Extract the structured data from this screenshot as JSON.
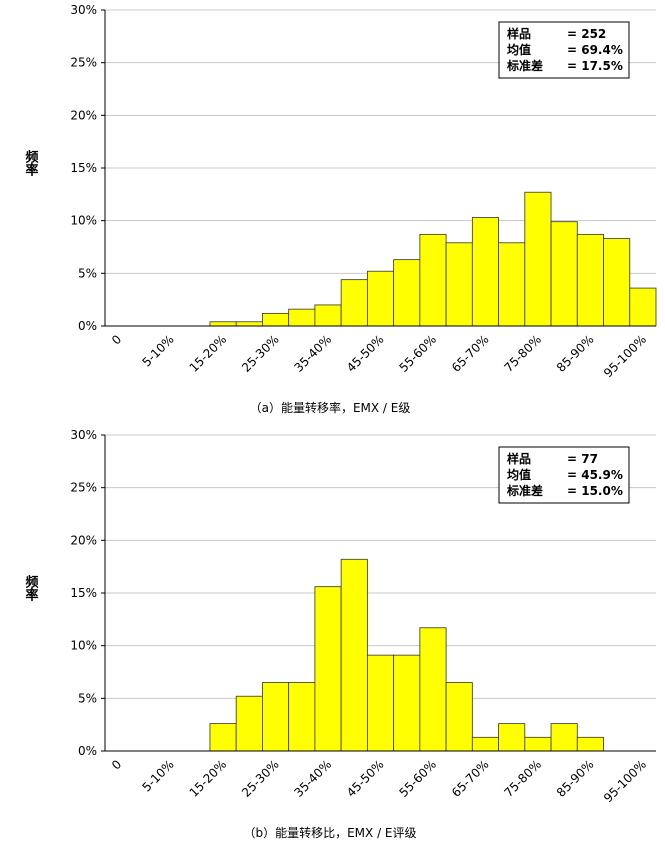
{
  "chart_data": [
    {
      "type": "bar",
      "ylabel": "频率",
      "caption": "（a）能量转移率，EMX / E级",
      "color": "#ffff00",
      "categories": [
        "0",
        null,
        "5-10%",
        null,
        "15-20%",
        null,
        "25-30%",
        null,
        "35-40%",
        null,
        "45-50%",
        null,
        "55-60%",
        null,
        "65-70%",
        null,
        "75-80%",
        null,
        "85-90%",
        null,
        "95-100%"
      ],
      "values": [
        0,
        0,
        0,
        0,
        0.4,
        0.4,
        1.2,
        1.6,
        2.0,
        4.4,
        5.2,
        6.3,
        8.7,
        7.9,
        10.3,
        7.9,
        12.7,
        9.9,
        8.7,
        8.3,
        3.6
      ],
      "ylim": [
        0,
        30
      ],
      "yticks": [
        {
          "value": 0,
          "label": "0%"
        },
        {
          "value": 5,
          "label": "5%"
        },
        {
          "value": 10,
          "label": "10%"
        },
        {
          "value": 15,
          "label": "15%"
        },
        {
          "value": 20,
          "label": "20%"
        },
        {
          "value": 25,
          "label": "25%"
        },
        {
          "value": 30,
          "label": "30%"
        }
      ],
      "grid": true,
      "stats": [
        {
          "label": "样品",
          "value": "= 252"
        },
        {
          "label": "均值",
          "value": "= 69.4%"
        },
        {
          "label": "标准差",
          "value": "= 17.5%"
        }
      ]
    },
    {
      "type": "bar",
      "ylabel": "频率",
      "caption": "（b）能量转移比，EMX / E评级",
      "color": "#ffff00",
      "categories": [
        "0",
        null,
        "5-10%",
        null,
        "15-20%",
        null,
        "25-30%",
        null,
        "35-40%",
        null,
        "45-50%",
        null,
        "55-60%",
        null,
        "65-70%",
        null,
        "75-80%",
        null,
        "85-90%",
        null,
        "95-100%"
      ],
      "values": [
        0,
        0,
        0,
        0,
        2.6,
        5.2,
        6.5,
        6.5,
        15.6,
        18.2,
        9.1,
        9.1,
        11.7,
        6.5,
        1.3,
        2.6,
        1.3,
        2.6,
        1.3,
        0,
        0
      ],
      "ylim": [
        0,
        30
      ],
      "yticks": [
        {
          "value": 0,
          "label": "0%"
        },
        {
          "value": 5,
          "label": "5%"
        },
        {
          "value": 10,
          "label": "10%"
        },
        {
          "value": 15,
          "label": "15%"
        },
        {
          "value": 20,
          "label": "20%"
        },
        {
          "value": 25,
          "label": "25%"
        },
        {
          "value": 30,
          "label": "30%"
        }
      ],
      "grid": true,
      "stats": [
        {
          "label": "样品",
          "value": "= 77"
        },
        {
          "label": "均值",
          "value": "= 45.9%"
        },
        {
          "label": "标准差",
          "value": "= 15.0%"
        }
      ]
    }
  ]
}
